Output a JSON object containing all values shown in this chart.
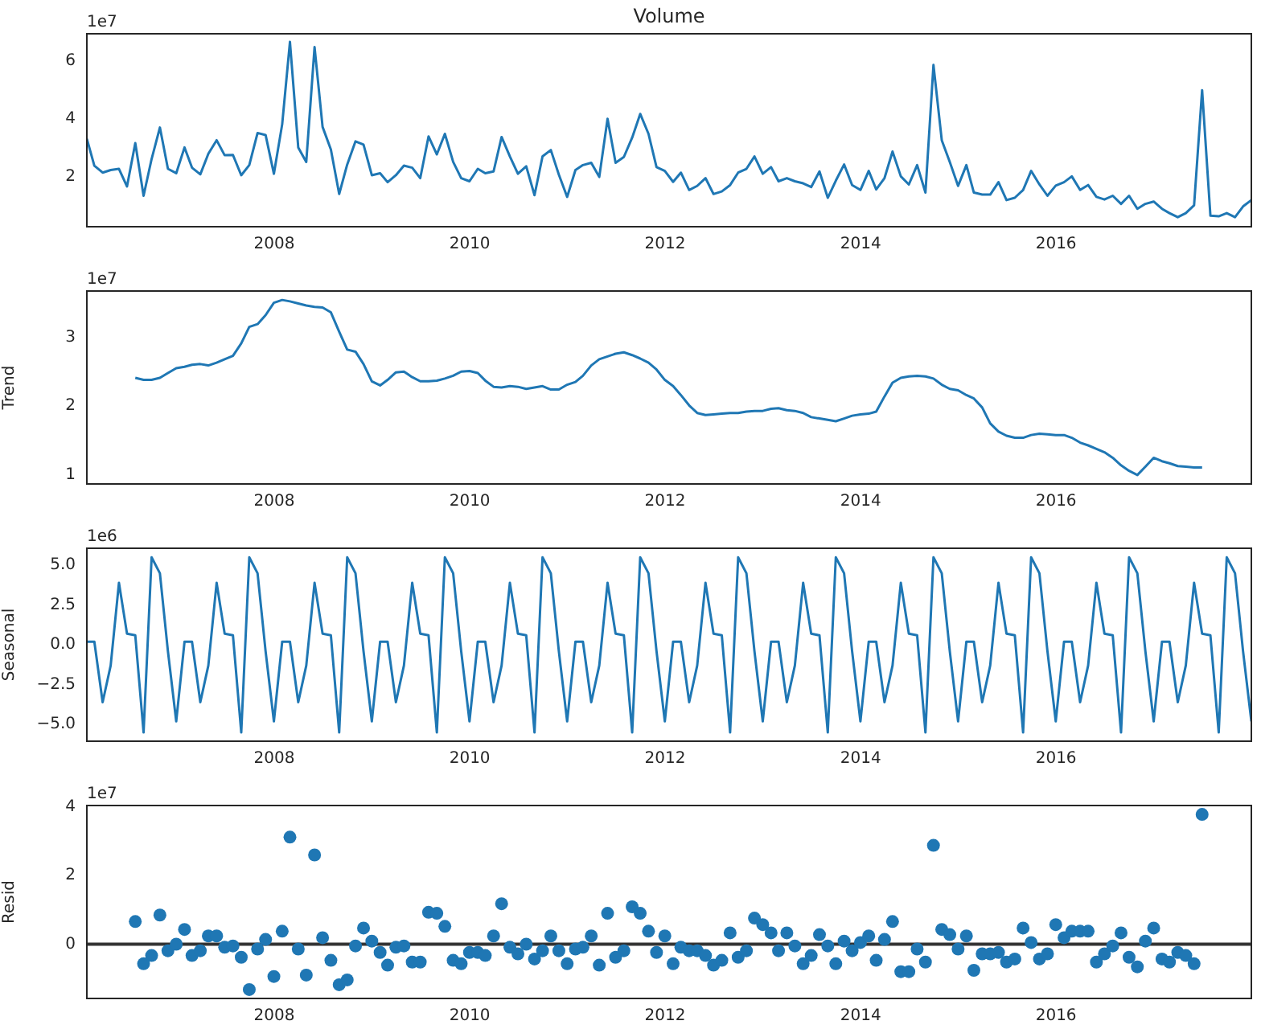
{
  "chart_data": [
    {
      "type": "line",
      "title": "Volume",
      "annotations": [
        "1e7"
      ],
      "color": "#1f77b4",
      "x": [
        "2006-01-31",
        "2006-02-28",
        "2006-03-31",
        "2006-04-30",
        "2006-05-31",
        "2006-06-30",
        "2006-07-31",
        "2006-08-31",
        "2006-09-30",
        "2006-10-31",
        "2006-11-30",
        "2006-12-31",
        "2007-01-31",
        "2007-02-28",
        "2007-03-31",
        "2007-04-30",
        "2007-05-31",
        "2007-06-30",
        "2007-07-31",
        "2007-08-31",
        "2007-09-30",
        "2007-10-31",
        "2007-11-30",
        "2007-12-31",
        "2008-01-31",
        "2008-02-29",
        "2008-03-31",
        "2008-04-30",
        "2008-05-31",
        "2008-06-30",
        "2008-07-31",
        "2008-08-31",
        "2008-09-30",
        "2008-10-31",
        "2008-11-30",
        "2008-12-31",
        "2009-01-31",
        "2009-02-28",
        "2009-03-31",
        "2009-04-30",
        "2009-05-31",
        "2009-06-30",
        "2009-07-31",
        "2009-08-31",
        "2009-09-30",
        "2009-10-31",
        "2009-11-30",
        "2009-12-31",
        "2010-01-31",
        "2010-02-28",
        "2010-03-31",
        "2010-04-30",
        "2010-05-31",
        "2010-06-30",
        "2010-07-31",
        "2010-08-31",
        "2010-09-30",
        "2010-10-31",
        "2010-11-30",
        "2010-12-31",
        "2011-01-31",
        "2011-02-28",
        "2011-03-31",
        "2011-04-30",
        "2011-05-31",
        "2011-06-30",
        "2011-07-31",
        "2011-08-31",
        "2011-09-30",
        "2011-10-31",
        "2011-11-30",
        "2011-12-31",
        "2012-01-31",
        "2012-02-29",
        "2012-03-31",
        "2012-04-30",
        "2012-05-31",
        "2012-06-30",
        "2012-07-31",
        "2012-08-31",
        "2012-09-30",
        "2012-10-31",
        "2012-11-30",
        "2012-12-31",
        "2013-01-31",
        "2013-02-28",
        "2013-03-31",
        "2013-04-30",
        "2013-05-31",
        "2013-06-30",
        "2013-07-31",
        "2013-08-31",
        "2013-09-30",
        "2013-10-31",
        "2013-11-30",
        "2013-12-31",
        "2014-01-31",
        "2014-02-28",
        "2014-03-31",
        "2014-04-30",
        "2014-05-31",
        "2014-06-30",
        "2014-07-31",
        "2014-08-31",
        "2014-09-30",
        "2014-10-31",
        "2014-11-30",
        "2014-12-31",
        "2015-01-31",
        "2015-02-28",
        "2015-03-31",
        "2015-04-30",
        "2015-05-31",
        "2015-06-30",
        "2015-07-31",
        "2015-08-31",
        "2015-09-30",
        "2015-10-31",
        "2015-11-30",
        "2015-12-31",
        "2016-01-31",
        "2016-02-29",
        "2016-03-31",
        "2016-04-30",
        "2016-05-31",
        "2016-06-30",
        "2016-07-31",
        "2016-08-31",
        "2016-09-30",
        "2016-10-31",
        "2016-11-30",
        "2016-12-31",
        "2017-01-31",
        "2017-02-28",
        "2017-03-31",
        "2017-04-30",
        "2017-05-31",
        "2017-06-30",
        "2017-07-31",
        "2017-08-31",
        "2017-09-30",
        "2017-10-31",
        "2017-11-30",
        "2017-12-31"
      ],
      "values": [
        3.3,
        2.37,
        2.13,
        2.22,
        2.26,
        1.65,
        3.15,
        1.33,
        2.6,
        3.69,
        2.26,
        2.11,
        3.0,
        2.3,
        2.07,
        2.78,
        3.25,
        2.73,
        2.74,
        2.04,
        2.39,
        3.5,
        3.43,
        2.09,
        3.8,
        6.65,
        3.0,
        2.5,
        6.47,
        3.71,
        2.93,
        1.39,
        2.41,
        3.21,
        3.1,
        2.04,
        2.11,
        1.8,
        2.04,
        2.37,
        2.3,
        1.94,
        3.38,
        2.76,
        3.47,
        2.5,
        1.94,
        1.83,
        2.26,
        2.11,
        2.17,
        3.36,
        2.69,
        2.09,
        2.35,
        1.35,
        2.69,
        2.91,
        2.06,
        1.29,
        2.22,
        2.39,
        2.47,
        1.98,
        3.99,
        2.47,
        2.67,
        3.34,
        4.16,
        3.47,
        2.32,
        2.19,
        1.81,
        2.13,
        1.53,
        1.67,
        1.94,
        1.39,
        1.48,
        1.7,
        2.13,
        2.26,
        2.69,
        2.09,
        2.32,
        1.83,
        1.94,
        1.83,
        1.76,
        1.63,
        2.17,
        1.26,
        1.85,
        2.41,
        1.7,
        1.53,
        2.19,
        1.55,
        1.94,
        2.86,
        2.0,
        1.72,
        2.39,
        1.44,
        5.85,
        3.25,
        2.5,
        1.67,
        2.39,
        1.44,
        1.37,
        1.37,
        1.8,
        1.18,
        1.26,
        1.53,
        2.19,
        1.72,
        1.33,
        1.68,
        1.8,
        2.0,
        1.53,
        1.7,
        1.29,
        1.2,
        1.33,
        1.05,
        1.33,
        0.88,
        1.05,
        1.13,
        0.88,
        0.73,
        0.59,
        0.73,
        1.0,
        4.98,
        0.64,
        0.62,
        0.73,
        0.59,
        0.96,
        1.18
      ],
      "xlim": [
        "2006-01-31",
        "2017-12-31"
      ],
      "xticks": [
        "2008",
        "2010",
        "2012",
        "2014",
        "2016"
      ],
      "ylim": [
        0.26,
        6.93
      ],
      "yticks": [
        2,
        4,
        6
      ]
    },
    {
      "type": "line",
      "ylabel": "Trend",
      "annotations": [
        "1e7"
      ],
      "color": "#1f77b4",
      "x": [
        "2006-07-31",
        "2006-08-31",
        "2006-09-30",
        "2006-10-31",
        "2006-11-30",
        "2006-12-31",
        "2007-01-31",
        "2007-02-28",
        "2007-03-31",
        "2007-04-30",
        "2007-05-31",
        "2007-06-30",
        "2007-07-31",
        "2007-08-31",
        "2007-09-30",
        "2007-10-31",
        "2007-11-30",
        "2007-12-31",
        "2008-01-31",
        "2008-02-29",
        "2008-03-31",
        "2008-04-30",
        "2008-05-31",
        "2008-06-30",
        "2008-07-31",
        "2008-08-31",
        "2008-09-30",
        "2008-10-31",
        "2008-11-30",
        "2008-12-31",
        "2009-01-31",
        "2009-02-28",
        "2009-03-31",
        "2009-04-30",
        "2009-05-31",
        "2009-06-30",
        "2009-07-31",
        "2009-08-31",
        "2009-09-30",
        "2009-10-31",
        "2009-11-30",
        "2009-12-31",
        "2010-01-31",
        "2010-02-28",
        "2010-03-31",
        "2010-04-30",
        "2010-05-31",
        "2010-06-30",
        "2010-07-31",
        "2010-08-31",
        "2010-09-30",
        "2010-10-31",
        "2010-11-30",
        "2010-12-31",
        "2011-01-31",
        "2011-02-28",
        "2011-03-31",
        "2011-04-30",
        "2011-05-31",
        "2011-06-30",
        "2011-07-31",
        "2011-08-31",
        "2011-09-30",
        "2011-10-31",
        "2011-11-30",
        "2011-12-31",
        "2012-01-31",
        "2012-02-29",
        "2012-03-31",
        "2012-04-30",
        "2012-05-31",
        "2012-06-30",
        "2012-07-31",
        "2012-08-31",
        "2012-09-30",
        "2012-10-31",
        "2012-11-30",
        "2012-12-31",
        "2013-01-31",
        "2013-02-28",
        "2013-03-31",
        "2013-04-30",
        "2013-05-31",
        "2013-06-30",
        "2013-07-31",
        "2013-08-31",
        "2013-09-30",
        "2013-10-31",
        "2013-11-30",
        "2013-12-31",
        "2014-01-31",
        "2014-02-28",
        "2014-03-31",
        "2014-04-30",
        "2014-05-31",
        "2014-06-30",
        "2014-07-31",
        "2014-08-31",
        "2014-09-30",
        "2014-10-31",
        "2014-11-30",
        "2014-12-31",
        "2015-01-31",
        "2015-02-28",
        "2015-03-31",
        "2015-04-30",
        "2015-05-31",
        "2015-06-30",
        "2015-07-31",
        "2015-08-31",
        "2015-09-30",
        "2015-10-31",
        "2015-11-30",
        "2015-12-31",
        "2016-01-31",
        "2016-02-29",
        "2016-03-31",
        "2016-04-30",
        "2016-05-31",
        "2016-06-30",
        "2016-07-31",
        "2016-08-31",
        "2016-09-30",
        "2016-10-31",
        "2016-11-30",
        "2016-12-31",
        "2017-01-31",
        "2017-02-28",
        "2017-03-31",
        "2017-04-30",
        "2017-05-31",
        "2017-06-30"
      ],
      "values": [
        2.41,
        2.38,
        2.38,
        2.41,
        2.48,
        2.55,
        2.57,
        2.6,
        2.61,
        2.59,
        2.63,
        2.68,
        2.73,
        2.91,
        3.15,
        3.19,
        3.32,
        3.5,
        3.54,
        3.52,
        3.49,
        3.46,
        3.44,
        3.43,
        3.36,
        3.08,
        2.82,
        2.79,
        2.61,
        2.36,
        2.3,
        2.38,
        2.49,
        2.5,
        2.42,
        2.36,
        2.36,
        2.37,
        2.4,
        2.44,
        2.5,
        2.51,
        2.48,
        2.37,
        2.28,
        2.27,
        2.29,
        2.28,
        2.25,
        2.27,
        2.29,
        2.24,
        2.24,
        2.31,
        2.35,
        2.44,
        2.59,
        2.68,
        2.72,
        2.76,
        2.78,
        2.74,
        2.69,
        2.63,
        2.53,
        2.38,
        2.29,
        2.16,
        2.01,
        1.9,
        1.87,
        1.88,
        1.89,
        1.9,
        1.9,
        1.92,
        1.93,
        1.93,
        1.96,
        1.97,
        1.94,
        1.93,
        1.9,
        1.84,
        1.82,
        1.8,
        1.78,
        1.82,
        1.86,
        1.88,
        1.89,
        1.92,
        2.14,
        2.34,
        2.41,
        2.43,
        2.44,
        2.43,
        2.4,
        2.31,
        2.25,
        2.23,
        2.16,
        2.11,
        1.98,
        1.75,
        1.63,
        1.57,
        1.54,
        1.54,
        1.58,
        1.6,
        1.59,
        1.58,
        1.58,
        1.54,
        1.47,
        1.43,
        1.38,
        1.33,
        1.25,
        1.14,
        1.06,
        1.0,
        1.12,
        1.25,
        1.2,
        1.17,
        1.13,
        1.12,
        1.11,
        1.11
      ],
      "xlim": [
        "2006-01-31",
        "2017-12-31"
      ],
      "xticks": [
        "2008",
        "2010",
        "2012",
        "2014",
        "2016"
      ],
      "ylim": [
        0.87,
        3.67
      ],
      "yticks": [
        1,
        2,
        3
      ]
    },
    {
      "type": "line",
      "ylabel": "Seasonal",
      "annotations": [
        "1e6"
      ],
      "color": "#1f77b4",
      "x": [
        "2006-01-31",
        "2006-02-28",
        "2006-03-31",
        "2006-04-30",
        "2006-05-31",
        "2006-06-30",
        "2006-07-31",
        "2006-08-31",
        "2006-09-30",
        "2006-10-31",
        "2006-11-30",
        "2006-12-31",
        "2007-01-31",
        "2007-02-28",
        "2007-03-31",
        "2007-04-30",
        "2007-05-31",
        "2007-06-30",
        "2007-07-31",
        "2007-08-31",
        "2007-09-30",
        "2007-10-31",
        "2007-11-30",
        "2007-12-31",
        "2008-01-31",
        "2008-02-29",
        "2008-03-31",
        "2008-04-30",
        "2008-05-31",
        "2008-06-30",
        "2008-07-31",
        "2008-08-31",
        "2008-09-30",
        "2008-10-31",
        "2008-11-30",
        "2008-12-31",
        "2009-01-31",
        "2009-02-28",
        "2009-03-31",
        "2009-04-30",
        "2009-05-31",
        "2009-06-30",
        "2009-07-31",
        "2009-08-31",
        "2009-09-30",
        "2009-10-31",
        "2009-11-30",
        "2009-12-31",
        "2010-01-31",
        "2010-02-28",
        "2010-03-31",
        "2010-04-30",
        "2010-05-31",
        "2010-06-30",
        "2010-07-31",
        "2010-08-31",
        "2010-09-30",
        "2010-10-31",
        "2010-11-30",
        "2010-12-31",
        "2011-01-31",
        "2011-02-28",
        "2011-03-31",
        "2011-04-30",
        "2011-05-31",
        "2011-06-30",
        "2011-07-31",
        "2011-08-31",
        "2011-09-30",
        "2011-10-31",
        "2011-11-30",
        "2011-12-31",
        "2012-01-31",
        "2012-02-29",
        "2012-03-31",
        "2012-04-30",
        "2012-05-31",
        "2012-06-30",
        "2012-07-31",
        "2012-08-31",
        "2012-09-30",
        "2012-10-31",
        "2012-11-30",
        "2012-12-31",
        "2013-01-31",
        "2013-02-28",
        "2013-03-31",
        "2013-04-30",
        "2013-05-31",
        "2013-06-30",
        "2013-07-31",
        "2013-08-31",
        "2013-09-30",
        "2013-10-31",
        "2013-11-30",
        "2013-12-31",
        "2014-01-31",
        "2014-02-28",
        "2014-03-31",
        "2014-04-30",
        "2014-05-31",
        "2014-06-30",
        "2014-07-31",
        "2014-08-31",
        "2014-09-30",
        "2014-10-31",
        "2014-11-30",
        "2014-12-31",
        "2015-01-31",
        "2015-02-28",
        "2015-03-31",
        "2015-04-30",
        "2015-05-31",
        "2015-06-30",
        "2015-07-31",
        "2015-08-31",
        "2015-09-30",
        "2015-10-31",
        "2015-11-30",
        "2015-12-31",
        "2016-01-31",
        "2016-02-29",
        "2016-03-31",
        "2016-04-30",
        "2016-05-31",
        "2016-06-30",
        "2016-07-31",
        "2016-08-31",
        "2016-09-30",
        "2016-10-31",
        "2016-11-30",
        "2016-12-31",
        "2017-01-31",
        "2017-02-28",
        "2017-03-31",
        "2017-04-30",
        "2017-05-31",
        "2017-06-30",
        "2017-07-31",
        "2017-08-31",
        "2017-09-30",
        "2017-10-31",
        "2017-11-30",
        "2017-12-31"
      ],
      "values": [
        0.2,
        0.2,
        -3.6,
        -1.3,
        3.9,
        0.7,
        0.6,
        -5.5,
        5.5,
        4.5,
        -0.4,
        -4.8,
        0.2,
        0.2,
        -3.6,
        -1.3,
        3.9,
        0.7,
        0.6,
        -5.5,
        5.5,
        4.5,
        -0.4,
        -4.8,
        0.2,
        0.2,
        -3.6,
        -1.3,
        3.9,
        0.7,
        0.6,
        -5.5,
        5.5,
        4.5,
        -0.4,
        -4.8,
        0.2,
        0.2,
        -3.6,
        -1.3,
        3.9,
        0.7,
        0.6,
        -5.5,
        5.5,
        4.5,
        -0.4,
        -4.8,
        0.2,
        0.2,
        -3.6,
        -1.3,
        3.9,
        0.7,
        0.6,
        -5.5,
        5.5,
        4.5,
        -0.4,
        -4.8,
        0.2,
        0.2,
        -3.6,
        -1.3,
        3.9,
        0.7,
        0.6,
        -5.5,
        5.5,
        4.5,
        -0.4,
        -4.8,
        0.2,
        0.2,
        -3.6,
        -1.3,
        3.9,
        0.7,
        0.6,
        -5.5,
        5.5,
        4.5,
        -0.4,
        -4.8,
        0.2,
        0.2,
        -3.6,
        -1.3,
        3.9,
        0.7,
        0.6,
        -5.5,
        5.5,
        4.5,
        -0.4,
        -4.8,
        0.2,
        0.2,
        -3.6,
        -1.3,
        3.9,
        0.7,
        0.6,
        -5.5,
        5.5,
        4.5,
        -0.4,
        -4.8,
        0.2,
        0.2,
        -3.6,
        -1.3,
        3.9,
        0.7,
        0.6,
        -5.5,
        5.5,
        4.5,
        -0.4,
        -4.8,
        0.2,
        0.2,
        -3.6,
        -1.3,
        3.9,
        0.7,
        0.6,
        -5.5,
        5.5,
        4.5,
        -0.4,
        -4.8,
        0.2,
        0.2,
        -3.6,
        -1.3,
        3.9,
        0.7,
        0.6,
        -5.5,
        5.5,
        4.5,
        -0.4,
        -4.8
      ],
      "xlim": [
        "2006-01-31",
        "2017-12-31"
      ],
      "xticks": [
        "2008",
        "2010",
        "2012",
        "2014",
        "2016"
      ],
      "ylim": [
        -6.05,
        6.07
      ],
      "yticks": [
        {
          "value": -5,
          "label": "−5.0"
        },
        {
          "value": -2.5,
          "label": "−2.5"
        },
        {
          "value": 0,
          "label": "0.0"
        },
        {
          "value": 2.5,
          "label": "2.5"
        },
        {
          "value": 5,
          "label": "5.0"
        }
      ]
    },
    {
      "type": "scatter",
      "ylabel": "Resid",
      "annotations": [
        "1e7"
      ],
      "color": "#1f77b4",
      "marker": "circle",
      "x": [
        "2006-07-31",
        "2006-08-31",
        "2006-09-30",
        "2006-10-31",
        "2006-11-30",
        "2006-12-31",
        "2007-01-31",
        "2007-02-28",
        "2007-03-31",
        "2007-04-30",
        "2007-05-31",
        "2007-06-30",
        "2007-07-31",
        "2007-08-31",
        "2007-09-30",
        "2007-10-31",
        "2007-11-30",
        "2007-12-31",
        "2008-01-31",
        "2008-02-29",
        "2008-03-31",
        "2008-04-30",
        "2008-05-31",
        "2008-06-30",
        "2008-07-31",
        "2008-08-31",
        "2008-09-30",
        "2008-10-31",
        "2008-11-30",
        "2008-12-31",
        "2009-01-31",
        "2009-02-28",
        "2009-03-31",
        "2009-04-30",
        "2009-05-31",
        "2009-06-30",
        "2009-07-31",
        "2009-08-31",
        "2009-09-30",
        "2009-10-31",
        "2009-11-30",
        "2009-12-31",
        "2010-01-31",
        "2010-02-28",
        "2010-03-31",
        "2010-04-30",
        "2010-05-31",
        "2010-06-30",
        "2010-07-31",
        "2010-08-31",
        "2010-09-30",
        "2010-10-31",
        "2010-11-30",
        "2010-12-31",
        "2011-01-31",
        "2011-02-28",
        "2011-03-31",
        "2011-04-30",
        "2011-05-31",
        "2011-06-30",
        "2011-07-31",
        "2011-08-31",
        "2011-09-30",
        "2011-10-31",
        "2011-11-30",
        "2011-12-31",
        "2012-01-31",
        "2012-02-29",
        "2012-03-31",
        "2012-04-30",
        "2012-05-31",
        "2012-06-30",
        "2012-07-31",
        "2012-08-31",
        "2012-09-30",
        "2012-10-31",
        "2012-11-30",
        "2012-12-31",
        "2013-01-31",
        "2013-02-28",
        "2013-03-31",
        "2013-04-30",
        "2013-05-31",
        "2013-06-30",
        "2013-07-31",
        "2013-08-31",
        "2013-09-30",
        "2013-10-31",
        "2013-11-30",
        "2013-12-31",
        "2014-01-31",
        "2014-02-28",
        "2014-03-31",
        "2014-04-30",
        "2014-05-31",
        "2014-06-30",
        "2014-07-31",
        "2014-08-31",
        "2014-09-30",
        "2014-10-31",
        "2014-11-30",
        "2014-12-31",
        "2015-01-31",
        "2015-02-28",
        "2015-03-31",
        "2015-04-30",
        "2015-05-31",
        "2015-06-30",
        "2015-07-31",
        "2015-08-31",
        "2015-09-30",
        "2015-10-31",
        "2015-11-30",
        "2015-12-31",
        "2016-01-31",
        "2016-02-29",
        "2016-03-31",
        "2016-04-30",
        "2016-05-31",
        "2016-06-30",
        "2016-07-31",
        "2016-08-31",
        "2016-09-30",
        "2016-10-31",
        "2016-11-30",
        "2016-12-31",
        "2017-01-31",
        "2017-02-28",
        "2017-03-31",
        "2017-04-30",
        "2017-05-31",
        "2017-06-30"
      ],
      "values": [
        0.66,
        -0.57,
        -0.33,
        0.85,
        -0.19,
        0.0,
        0.43,
        -0.33,
        -0.19,
        0.24,
        0.24,
        -0.09,
        -0.05,
        -0.38,
        -1.32,
        -0.14,
        0.14,
        -0.94,
        0.38,
        3.12,
        -0.14,
        -0.9,
        2.6,
        0.19,
        -0.47,
        -1.18,
        -1.04,
        -0.05,
        0.47,
        0.09,
        -0.24,
        -0.61,
        -0.09,
        -0.05,
        -0.52,
        -0.52,
        0.93,
        0.9,
        0.52,
        -0.47,
        -0.57,
        -0.24,
        -0.24,
        -0.33,
        0.24,
        1.18,
        -0.09,
        -0.28,
        0.0,
        -0.43,
        -0.19,
        0.24,
        -0.19,
        -0.57,
        -0.14,
        -0.09,
        0.24,
        -0.61,
        0.9,
        -0.38,
        -0.19,
        1.09,
        0.9,
        0.38,
        -0.24,
        0.24,
        -0.57,
        -0.09,
        -0.19,
        -0.19,
        -0.33,
        -0.61,
        -0.47,
        0.33,
        -0.38,
        -0.19,
        0.76,
        0.57,
        0.33,
        -0.19,
        0.33,
        -0.05,
        -0.57,
        -0.33,
        0.28,
        -0.05,
        -0.57,
        0.09,
        -0.19,
        0.05,
        0.24,
        -0.47,
        0.14,
        0.66,
        -0.8,
        -0.8,
        -0.14,
        -0.52,
        2.88,
        0.43,
        0.28,
        -0.14,
        0.24,
        -0.76,
        -0.28,
        -0.28,
        -0.24,
        -0.52,
        -0.43,
        0.47,
        0.05,
        -0.43,
        -0.28,
        0.57,
        0.19,
        0.38,
        0.38,
        0.38,
        -0.52,
        -0.28,
        -0.05,
        0.33,
        -0.38,
        -0.66,
        0.09,
        0.47,
        -0.43,
        -0.52,
        -0.24,
        -0.33,
        -0.57,
        3.78
      ],
      "xlim": [
        "2006-01-31",
        "2017-12-31"
      ],
      "xticks": [
        "2008",
        "2010",
        "2012",
        "2014",
        "2016"
      ],
      "ylim": [
        -1.58,
        4.04
      ],
      "yticks": [
        0,
        2,
        4
      ],
      "ref_lines": [
        {
          "axis": "y",
          "value": 0,
          "color": "#333333"
        }
      ]
    }
  ]
}
